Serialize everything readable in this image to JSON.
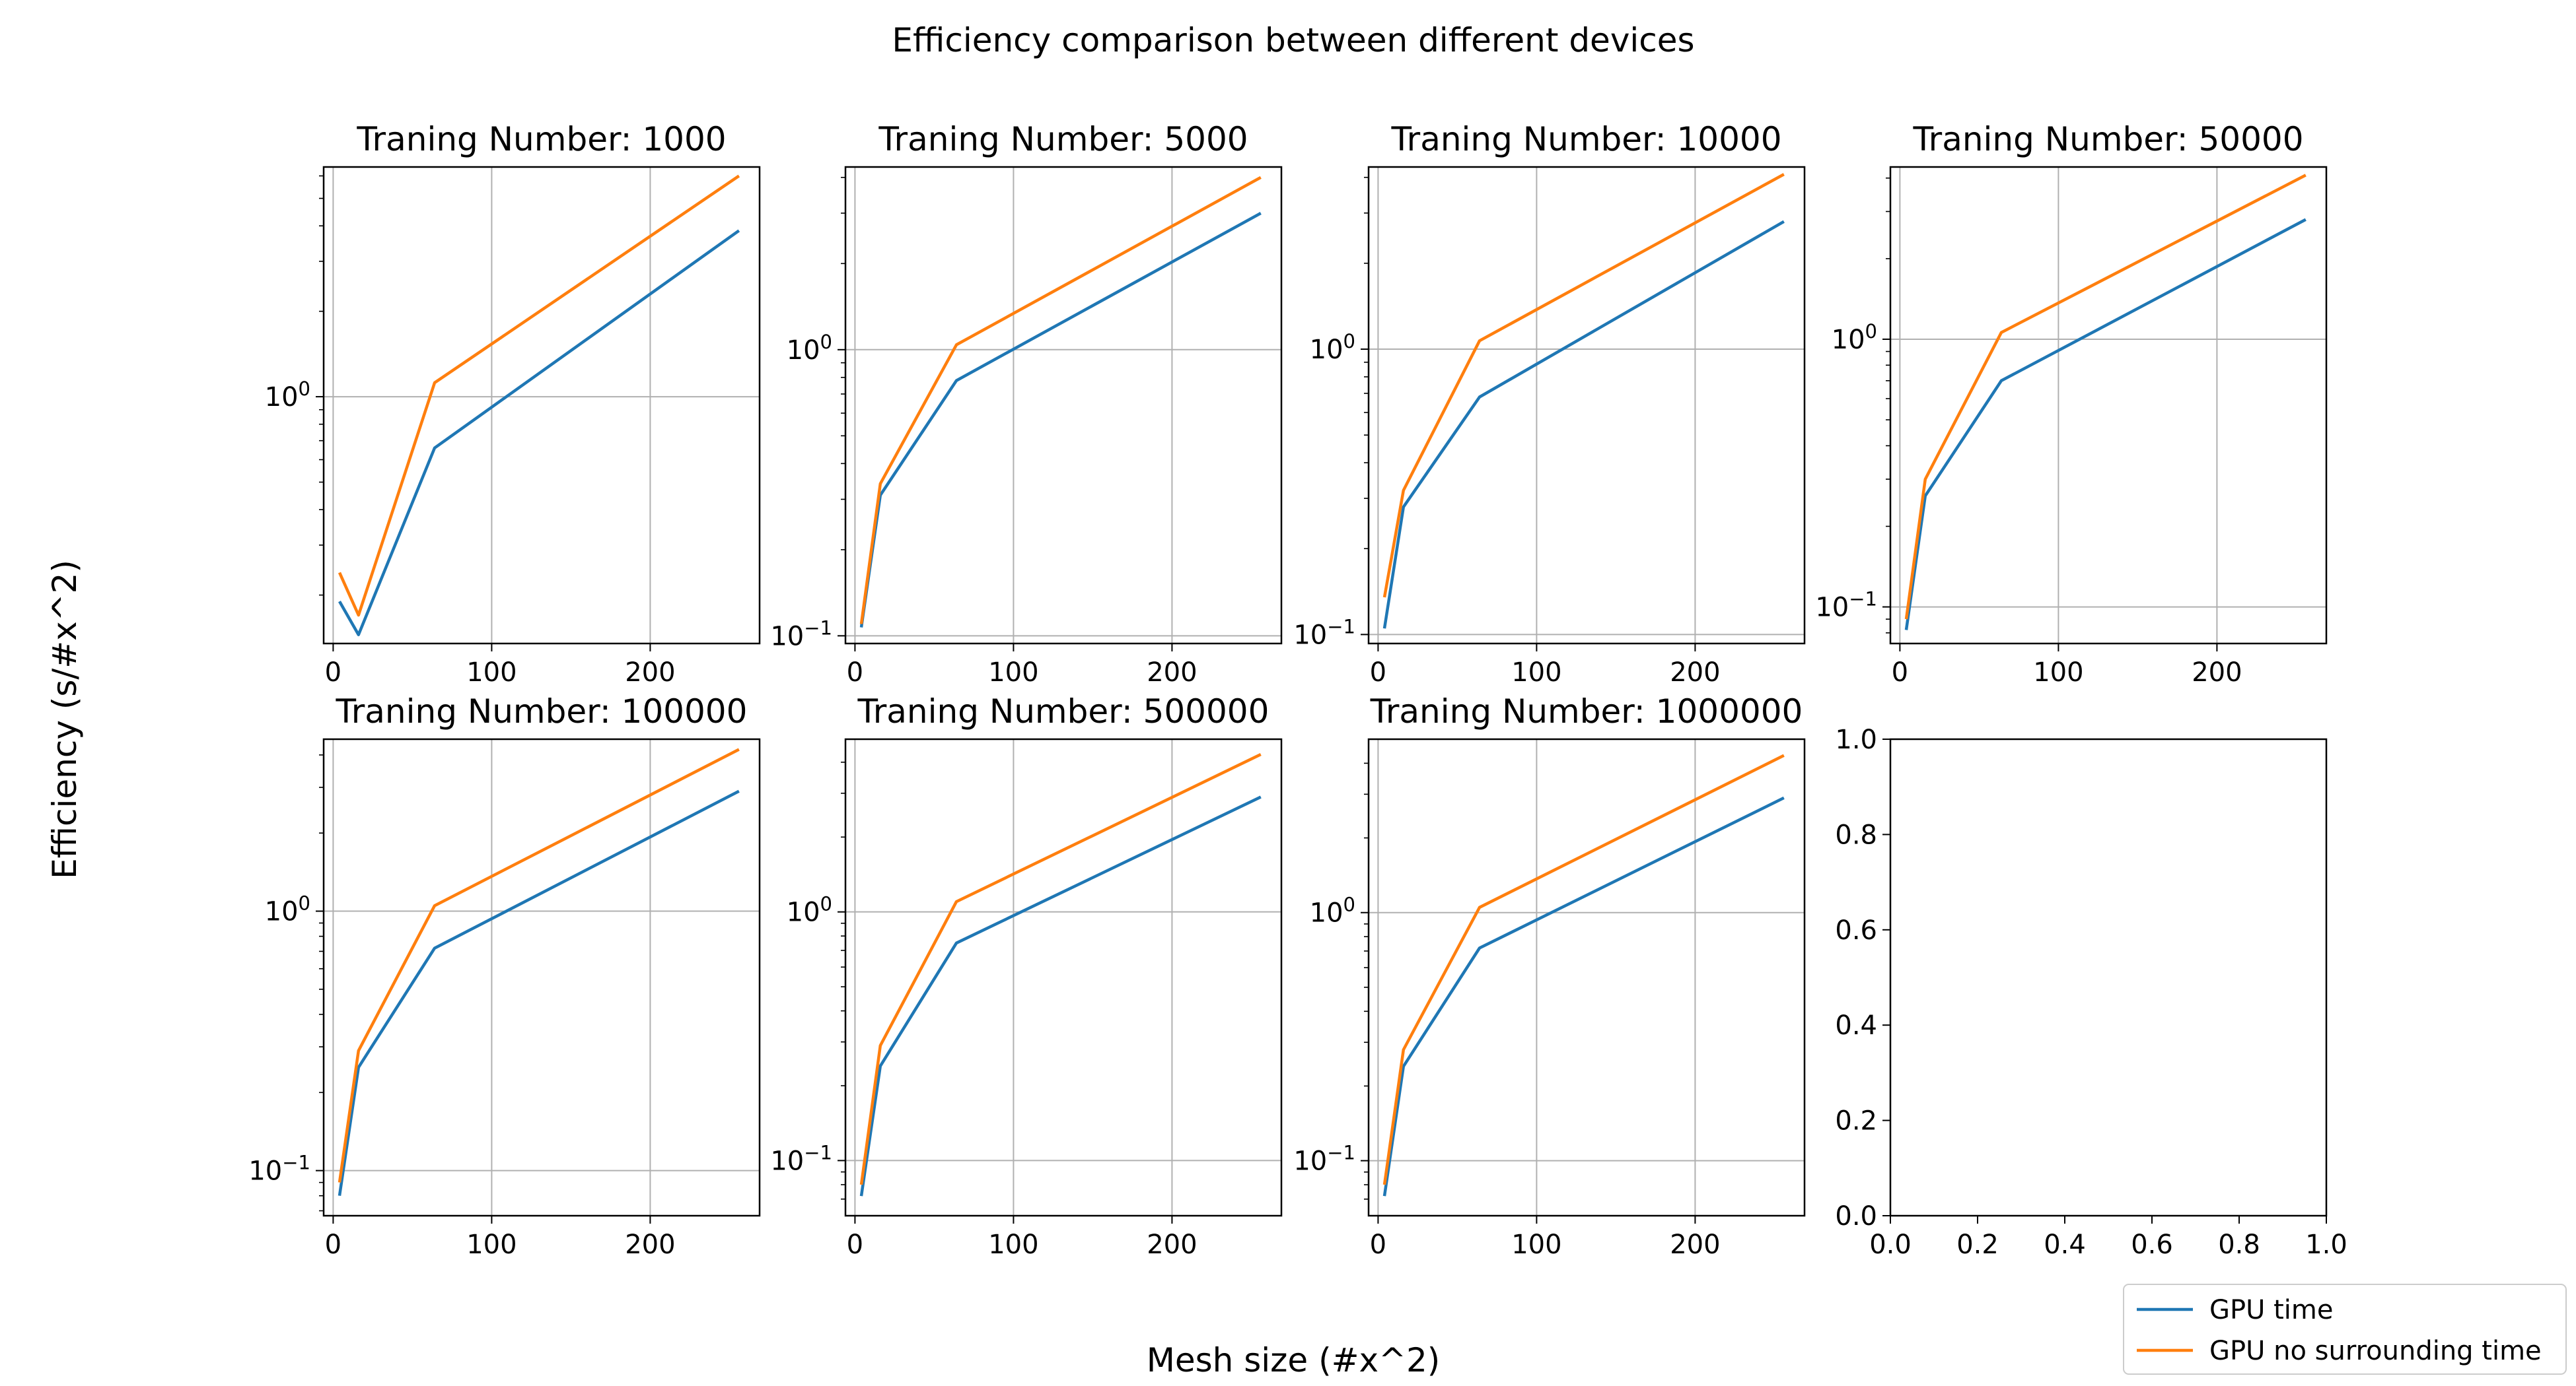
{
  "figure": {
    "title": "Efficiency comparison between different devices",
    "xlabel": "Mesh size (#x^2)",
    "ylabel": "Efficiency (s/#x^2)"
  },
  "colors": {
    "gpu_time": "#1f77b4",
    "gpu_no_surrounding": "#ff7f0e",
    "grid": "#b0b0b0"
  },
  "legend": {
    "placement": "lower-right",
    "entries": [
      "GPU time",
      "GPU no surrounding time"
    ]
  },
  "chart_data": [
    {
      "type": "line",
      "title": "Traning Number: 1000",
      "yscale": "log",
      "xlim": [
        -6,
        269
      ],
      "ylim": [
        0.135,
        6.45
      ],
      "xticks": [
        0,
        100,
        200
      ],
      "yticks": [
        {
          "value": 1,
          "label": "10^0"
        }
      ],
      "x": [
        4,
        16,
        64,
        256
      ],
      "series": [
        {
          "name": "GPU time",
          "values": [
            0.19,
            0.145,
            0.66,
            3.85
          ]
        },
        {
          "name": "GPU no surrounding time",
          "values": [
            0.24,
            0.17,
            1.12,
            6.0
          ]
        }
      ]
    },
    {
      "type": "line",
      "title": "Traning Number: 5000",
      "yscale": "log",
      "xlim": [
        -6,
        269
      ],
      "ylim": [
        0.094,
        4.35
      ],
      "xticks": [
        0,
        100,
        200
      ],
      "yticks": [
        {
          "value": 0.1,
          "label": "10^-1"
        },
        {
          "value": 1,
          "label": "10^0"
        }
      ],
      "x": [
        4,
        16,
        64,
        256
      ],
      "series": [
        {
          "name": "GPU time",
          "values": [
            0.107,
            0.31,
            0.78,
            3.0
          ]
        },
        {
          "name": "GPU no surrounding time",
          "values": [
            0.11,
            0.34,
            1.04,
            4.0
          ]
        }
      ]
    },
    {
      "type": "line",
      "title": "Traning Number: 10000",
      "yscale": "log",
      "xlim": [
        -6,
        269
      ],
      "ylim": [
        0.093,
        4.35
      ],
      "xticks": [
        0,
        100,
        200
      ],
      "yticks": [
        {
          "value": 0.1,
          "label": "10^-1"
        },
        {
          "value": 1,
          "label": "10^0"
        }
      ],
      "x": [
        4,
        16,
        64,
        256
      ],
      "series": [
        {
          "name": "GPU time",
          "values": [
            0.105,
            0.28,
            0.68,
            2.8
          ]
        },
        {
          "name": "GPU no surrounding time",
          "values": [
            0.135,
            0.32,
            1.07,
            4.1
          ]
        }
      ]
    },
    {
      "type": "line",
      "title": "Traning Number: 50000",
      "yscale": "log",
      "xlim": [
        -6,
        269
      ],
      "ylim": [
        0.073,
        4.4
      ],
      "xticks": [
        0,
        100,
        200
      ],
      "yticks": [
        {
          "value": 0.1,
          "label": "10^-1"
        },
        {
          "value": 1,
          "label": "10^0"
        }
      ],
      "x": [
        4,
        16,
        64,
        256
      ],
      "series": [
        {
          "name": "GPU time",
          "values": [
            0.082,
            0.26,
            0.7,
            2.8
          ]
        },
        {
          "name": "GPU no surrounding time",
          "values": [
            0.09,
            0.3,
            1.06,
            4.1
          ]
        }
      ]
    },
    {
      "type": "line",
      "title": "Traning Number: 100000",
      "yscale": "log",
      "xlim": [
        -6,
        269
      ],
      "ylim": [
        0.067,
        4.6
      ],
      "xticks": [
        0,
        100,
        200
      ],
      "yticks": [
        {
          "value": 0.1,
          "label": "10^-1"
        },
        {
          "value": 1,
          "label": "10^0"
        }
      ],
      "x": [
        4,
        16,
        64,
        256
      ],
      "series": [
        {
          "name": "GPU time",
          "values": [
            0.08,
            0.25,
            0.72,
            2.9
          ]
        },
        {
          "name": "GPU no surrounding time",
          "values": [
            0.09,
            0.29,
            1.05,
            4.2
          ]
        }
      ]
    },
    {
      "type": "line",
      "title": "Traning Number: 500000",
      "yscale": "log",
      "xlim": [
        -6,
        269
      ],
      "ylim": [
        0.06,
        4.95
      ],
      "xticks": [
        0,
        100,
        200
      ],
      "yticks": [
        {
          "value": 0.1,
          "label": "10^-1"
        },
        {
          "value": 1,
          "label": "10^0"
        }
      ],
      "x": [
        4,
        16,
        64,
        256
      ],
      "series": [
        {
          "name": "GPU time",
          "values": [
            0.072,
            0.24,
            0.75,
            2.9
          ]
        },
        {
          "name": "GPU no surrounding time",
          "values": [
            0.08,
            0.29,
            1.1,
            4.3
          ]
        }
      ]
    },
    {
      "type": "line",
      "title": "Traning Number: 1000000",
      "yscale": "log",
      "xlim": [
        -6,
        269
      ],
      "ylim": [
        0.06,
        5.0
      ],
      "xticks": [
        0,
        100,
        200
      ],
      "yticks": [
        {
          "value": 0.1,
          "label": "10^-1"
        },
        {
          "value": 1,
          "label": "10^0"
        }
      ],
      "x": [
        4,
        16,
        64,
        256
      ],
      "series": [
        {
          "name": "GPU time",
          "values": [
            0.072,
            0.24,
            0.72,
            2.9
          ]
        },
        {
          "name": "GPU no surrounding time",
          "values": [
            0.08,
            0.28,
            1.05,
            4.3
          ]
        }
      ]
    },
    {
      "type": "line",
      "title": "",
      "yscale": "linear",
      "empty": true,
      "xlim": [
        0,
        1
      ],
      "ylim": [
        0,
        1
      ],
      "xticks": [
        "0.0",
        "0.2",
        "0.4",
        "0.6",
        "0.8",
        "1.0"
      ],
      "yticks": [
        "0.0",
        "0.2",
        "0.4",
        "0.6",
        "0.8",
        "1.0"
      ],
      "series": []
    }
  ]
}
